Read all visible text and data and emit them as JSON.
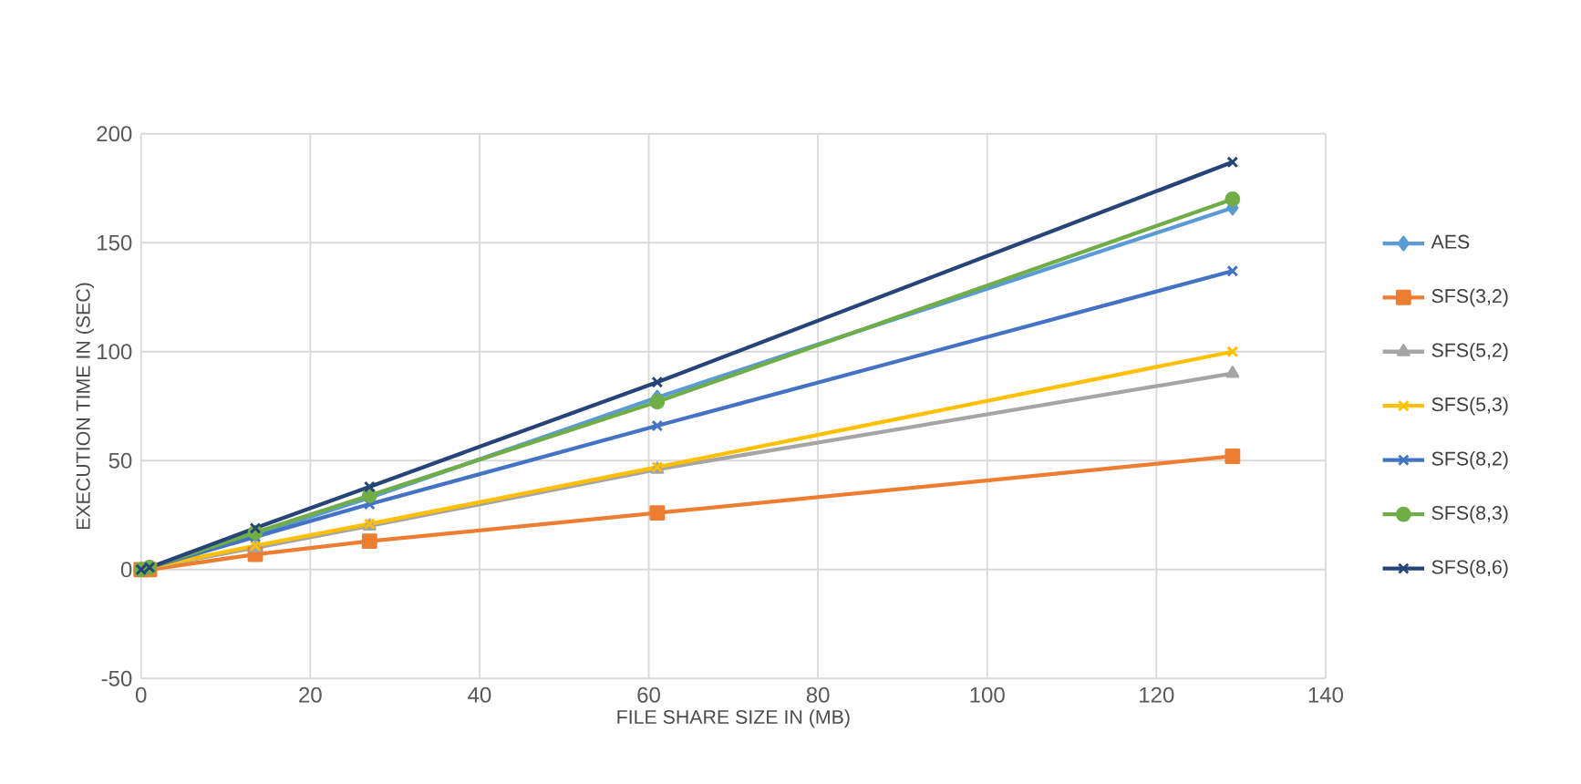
{
  "chart_data": {
    "type": "line",
    "xlabel": "FILE SHARE SIZE IN (MB)",
    "ylabel": "EXECUTION TIME IN (SEC)",
    "x": [
      0,
      1,
      13.5,
      27,
      61,
      129
    ],
    "xlim": [
      0,
      140
    ],
    "xticks": [
      0,
      20,
      40,
      60,
      80,
      100,
      120,
      140
    ],
    "ylim": [
      -50,
      200
    ],
    "yticks": [
      -50,
      0,
      50,
      100,
      150,
      200
    ],
    "grid": true,
    "legend": "right",
    "series": [
      {
        "name": "AES",
        "color": "#5b9bd5",
        "marker": "diamond",
        "values": [
          0,
          1,
          16,
          33,
          79,
          166
        ]
      },
      {
        "name": "SFS(3,2)",
        "color": "#ed7d31",
        "marker": "square",
        "values": [
          0,
          0,
          7,
          13,
          26,
          52
        ]
      },
      {
        "name": "SFS(5,2)",
        "color": "#a5a5a5",
        "marker": "triangle",
        "values": [
          0,
          1,
          10,
          20,
          46,
          90
        ]
      },
      {
        "name": "SFS(5,3)",
        "color": "#ffc000",
        "marker": "cross",
        "values": [
          0,
          1,
          11,
          21,
          47,
          100
        ]
      },
      {
        "name": "SFS(8,2)",
        "color": "#4472c4",
        "marker": "cross",
        "values": [
          0,
          1,
          15,
          30,
          66,
          137
        ]
      },
      {
        "name": "SFS(8,3)",
        "color": "#70ad47",
        "marker": "circle",
        "values": [
          0,
          1,
          17,
          34,
          77,
          170
        ]
      },
      {
        "name": "SFS(8,6)",
        "color": "#264478",
        "marker": "cross",
        "values": [
          0,
          1,
          19,
          38,
          86,
          187
        ]
      }
    ]
  }
}
